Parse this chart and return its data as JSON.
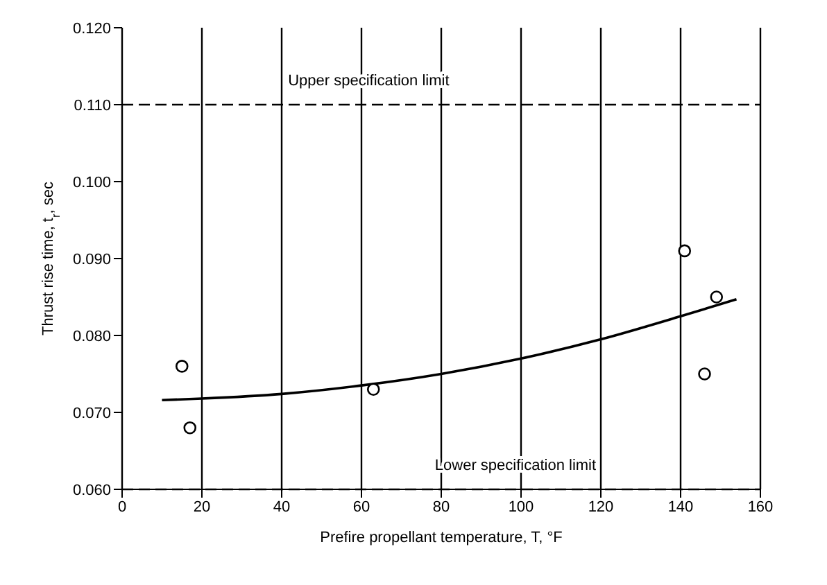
{
  "chart_data": {
    "type": "scatter",
    "xlabel": "Prefire propellant temperature, T, °F",
    "ylabel": "Thrust rise time, t$_{r}$, sec",
    "xlim": [
      0,
      160
    ],
    "xticks": [
      0,
      20,
      40,
      60,
      80,
      100,
      120,
      140,
      160
    ],
    "ylim": [
      0.06,
      0.12
    ],
    "yticks": [
      {
        "value": 0.06,
        "label": "0.060"
      },
      {
        "value": 0.07,
        "label": "0.070"
      },
      {
        "value": 0.08,
        "label": "0.080"
      },
      {
        "value": 0.09,
        "label": "0.090"
      },
      {
        "value": 0.1,
        "label": "0.100"
      },
      {
        "value": 0.11,
        "label": "0.110"
      },
      {
        "value": 0.12,
        "label": "0.120"
      }
    ],
    "grid": "x",
    "marker": "circle",
    "series": [
      {
        "color": "#000000",
        "x": [
          15,
          17,
          63,
          141,
          146,
          149
        ],
        "values": [
          0.076,
          0.068,
          0.073,
          0.091,
          0.075,
          0.085
        ]
      },
      {
        "type": "line",
        "color": "#000000",
        "marker": "none",
        "x": [
          10,
          20,
          40,
          60,
          80,
          100,
          120,
          140,
          154
        ],
        "values": [
          0.0716,
          0.0718,
          0.0724,
          0.0735,
          0.075,
          0.077,
          0.0795,
          0.0825,
          0.0847
        ]
      }
    ],
    "ref_lines": [
      {
        "axis": "y",
        "value": 0.11,
        "label": "Upper specification limit",
        "color": "#000000",
        "line_style": "dashed"
      },
      {
        "axis": "y",
        "value": 0.06,
        "label": "Lower specification limit",
        "color": "#000000",
        "line_style": "dashed"
      }
    ]
  }
}
